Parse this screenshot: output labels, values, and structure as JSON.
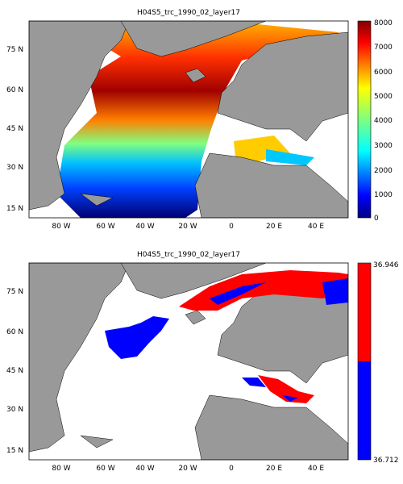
{
  "maps": [
    {
      "title": "H04S5_trc_1990_02_layer17",
      "lat_ticks": [
        "75 N",
        "60 N",
        "45 N",
        "30 N",
        "15 N"
      ],
      "lon_ticks": [
        "80 W",
        "60 W",
        "40 W",
        "20 W",
        "0",
        "20 E",
        "40 E"
      ],
      "colorbar": {
        "type": "jet",
        "ticks": [
          "0",
          "1000",
          "2000",
          "3000",
          "4000",
          "5000",
          "6000",
          "7000",
          "8000"
        ]
      }
    },
    {
      "title": "H04S5_trc_1990_02_layer17",
      "lat_ticks": [
        "75 N",
        "60 N",
        "45 N",
        "30 N",
        "15 N"
      ],
      "lon_ticks": [
        "80 W",
        "60 W",
        "40 W",
        "20 W",
        "0",
        "20 E",
        "40 E"
      ],
      "colorbar": {
        "type": "binary",
        "top_label": "36.946",
        "bottom_label": "36.712",
        "colors": [
          "#ff0000",
          "#0000ff"
        ]
      }
    }
  ],
  "colors": {
    "land": "#999999",
    "ocean_missing": "#ffffff"
  }
}
